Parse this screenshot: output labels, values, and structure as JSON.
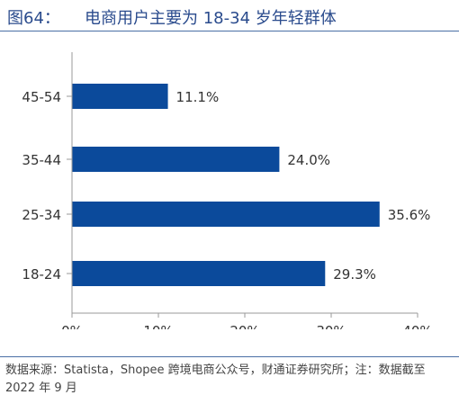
{
  "header": {
    "figure_label": "图64：",
    "title": "电商用户主要为 18-34 岁年轻群体"
  },
  "colors": {
    "bar": "#0b4a9b",
    "title": "#2a4b8d",
    "rule": "#4a6fa5",
    "axis": "#999999",
    "text": "#333333"
  },
  "chart_data": {
    "type": "bar",
    "orientation": "horizontal",
    "categories": [
      "45-54",
      "35-44",
      "25-34",
      "18-24"
    ],
    "values": [
      11.1,
      24.0,
      35.6,
      29.3
    ],
    "value_labels": [
      "11.1%",
      "24.0%",
      "35.6%",
      "29.3%"
    ],
    "x_ticks": [
      "0%",
      "10%",
      "20%",
      "30%",
      "40%"
    ],
    "xlim": [
      0,
      40
    ],
    "grid": false,
    "title": "",
    "xlabel": "",
    "ylabel": ""
  },
  "footer": {
    "source": "数据来源：Statista，Shopee 跨境电商公众号，财通证券研究所；注：数据截至 2022 年 9 月"
  }
}
